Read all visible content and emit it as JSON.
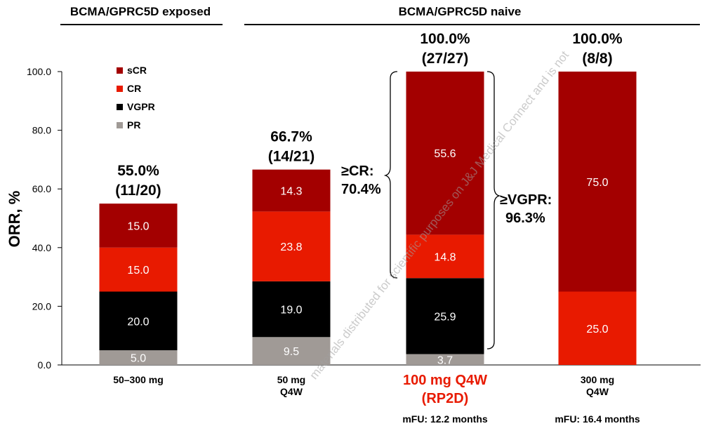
{
  "groups": [
    {
      "label": "BCMA/GPRC5D exposed"
    },
    {
      "label": "BCMA/GPRC5D naive"
    }
  ],
  "watermark": "materials distributed for scientific purposes on J&J Medical Connect and is not",
  "colors": {
    "sCR": "#a30000",
    "CR": "#e81a00",
    "VGPR": "#000000",
    "PR": "#a09a96"
  },
  "brackets": [
    {
      "label_line1": "≥CR:",
      "label_line2": "70.4%"
    },
    {
      "label_line1": "≥VGPR:",
      "label_line2": "96.3%"
    }
  ],
  "chart_data": {
    "type": "bar",
    "stacked": true,
    "ylabel": "ORR, %",
    "ylim": [
      0,
      100
    ],
    "yticks": [
      "0.0",
      "20.0",
      "40.0",
      "60.0",
      "80.0",
      "100.0"
    ],
    "legend": {
      "placement": "top-left",
      "order": [
        "sCR",
        "CR",
        "VGPR",
        "PR"
      ]
    },
    "categories": [
      {
        "line1": "50–300 mg",
        "line2": "",
        "highlight": false,
        "mfu": ""
      },
      {
        "line1": "50 mg",
        "line2": "Q4W",
        "highlight": false,
        "mfu": ""
      },
      {
        "line1": "100 mg Q4W",
        "line2": "(RP2D)",
        "highlight": true,
        "mfu": "mFU: 12.2 months"
      },
      {
        "line1": "300 mg",
        "line2": "Q4W",
        "highlight": false,
        "mfu": "mFU: 16.4 months"
      }
    ],
    "totals": [
      {
        "pct": "55.0%",
        "n": "(11/20)"
      },
      {
        "pct": "66.7%",
        "n": "(14/21)"
      },
      {
        "pct": "100.0%",
        "n": "(27/27)"
      },
      {
        "pct": "100.0%",
        "n": "(8/8)"
      }
    ],
    "series": [
      {
        "name": "PR",
        "values": [
          5.0,
          9.5,
          3.7,
          0
        ],
        "labels": [
          "5.0",
          "9.5",
          "3.7",
          ""
        ]
      },
      {
        "name": "VGPR",
        "values": [
          20.0,
          19.0,
          25.9,
          0
        ],
        "labels": [
          "20.0",
          "19.0",
          "25.9",
          ""
        ]
      },
      {
        "name": "CR",
        "values": [
          15.0,
          23.8,
          14.8,
          25.0
        ],
        "labels": [
          "15.0",
          "23.8",
          "14.8",
          "25.0"
        ]
      },
      {
        "name": "sCR",
        "values": [
          15.0,
          14.3,
          55.6,
          75.0
        ],
        "labels": [
          "15.0",
          "14.3",
          "55.6",
          "75.0"
        ]
      }
    ]
  }
}
